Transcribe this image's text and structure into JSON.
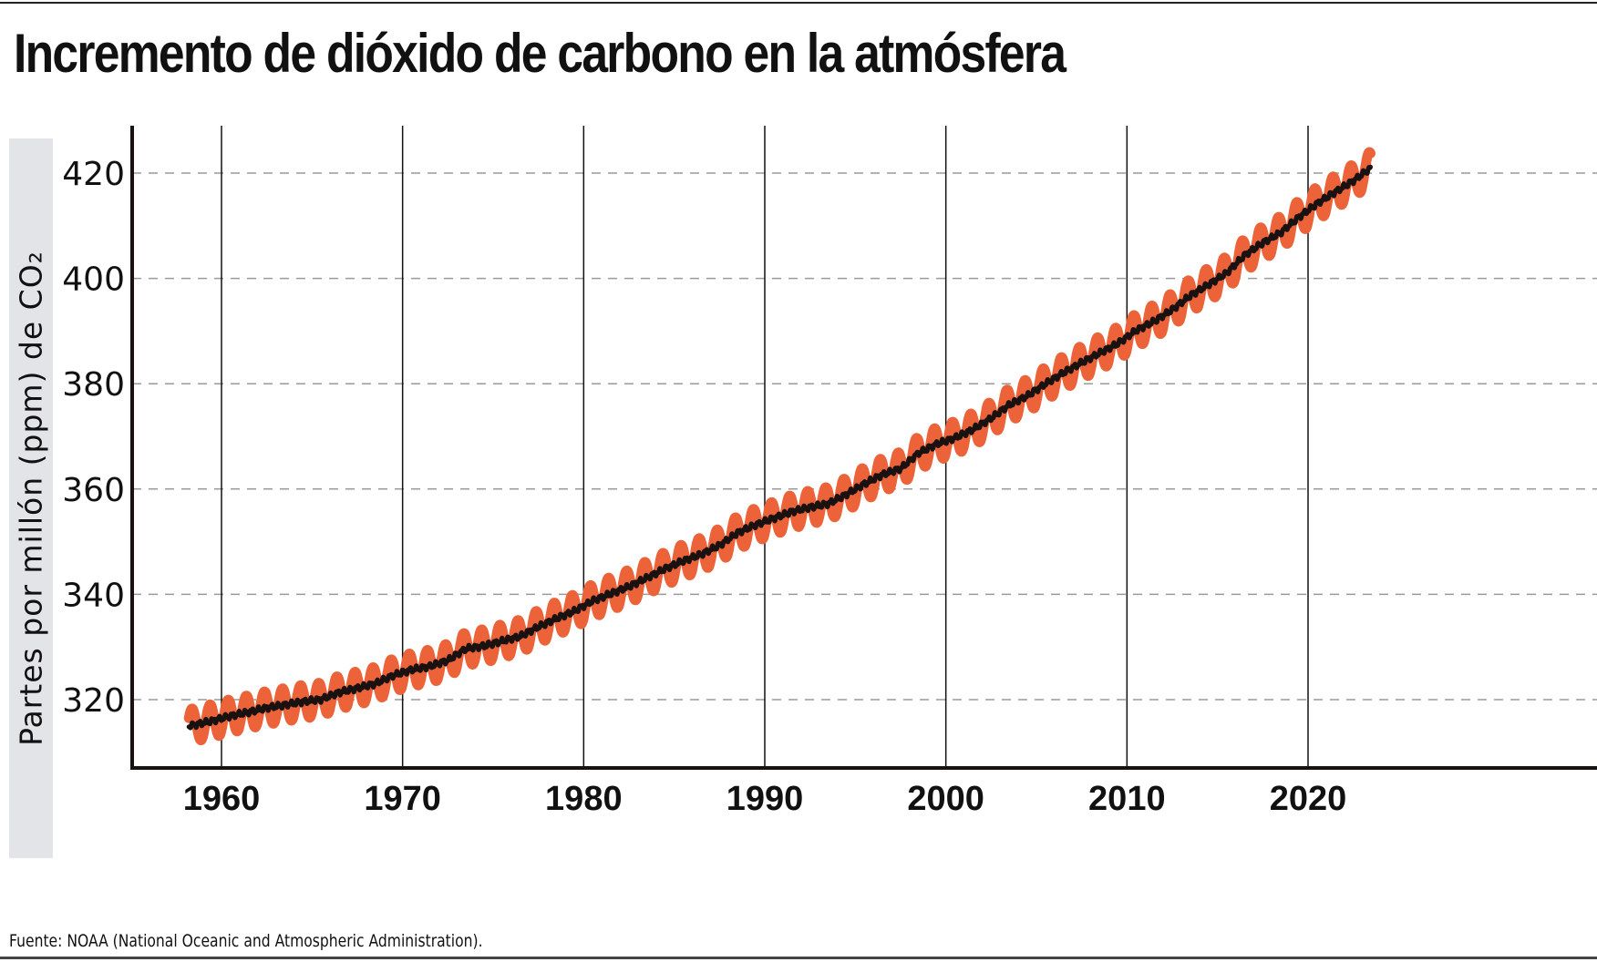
{
  "chart_data": {
    "type": "line",
    "title": "Incremento de dióxido de carbono en la atmósfera",
    "ylabel": "Partes por millón (ppm) de CO₂",
    "xlabel": "",
    "source": "Fuente: NOAA (National Oceanic and Atmospheric Administration).",
    "xlim": [
      1955,
      2026
    ],
    "ylim": [
      307,
      429
    ],
    "xticks": [
      1960,
      1970,
      1980,
      1990,
      2000,
      2010,
      2020
    ],
    "yticks": [
      320,
      340,
      360,
      380,
      400,
      420
    ],
    "grid": {
      "x": "solid",
      "y": "dashed"
    },
    "series": [
      {
        "role": "monthly",
        "color": "#ec6239",
        "seasonal_amplitude_ppm": 3.2
      },
      {
        "role": "trend",
        "color": "#1a1210"
      }
    ],
    "x": [
      1958,
      1959,
      1960,
      1961,
      1962,
      1963,
      1964,
      1965,
      1966,
      1967,
      1968,
      1969,
      1970,
      1971,
      1972,
      1973,
      1974,
      1975,
      1976,
      1977,
      1978,
      1979,
      1980,
      1981,
      1982,
      1983,
      1984,
      1985,
      1986,
      1987,
      1988,
      1989,
      1990,
      1991,
      1992,
      1993,
      1994,
      1995,
      1996,
      1997,
      1998,
      1999,
      2000,
      2001,
      2002,
      2003,
      2004,
      2005,
      2006,
      2007,
      2008,
      2009,
      2010,
      2011,
      2012,
      2013,
      2014,
      2015,
      2016,
      2017,
      2018,
      2019,
      2020,
      2021,
      2022,
      2023
    ],
    "annual_mean": [
      315.2,
      315.98,
      316.91,
      317.64,
      318.45,
      318.99,
      319.62,
      320.04,
      321.37,
      322.18,
      323.05,
      324.62,
      325.68,
      326.32,
      327.46,
      329.68,
      330.19,
      331.13,
      332.03,
      333.84,
      335.41,
      336.84,
      338.76,
      340.12,
      341.48,
      343.15,
      344.87,
      346.35,
      347.61,
      349.31,
      351.69,
      353.2,
      354.45,
      355.7,
      356.54,
      357.21,
      358.96,
      360.97,
      362.74,
      363.88,
      366.84,
      368.54,
      369.71,
      371.32,
      373.45,
      375.98,
      377.7,
      379.98,
      382.09,
      384.02,
      385.83,
      387.64,
      390.1,
      391.85,
      394.06,
      396.74,
      398.81,
      401.01,
      404.41,
      406.76,
      408.72,
      411.65,
      414.21,
      416.41,
      418.53,
      421.08
    ]
  }
}
